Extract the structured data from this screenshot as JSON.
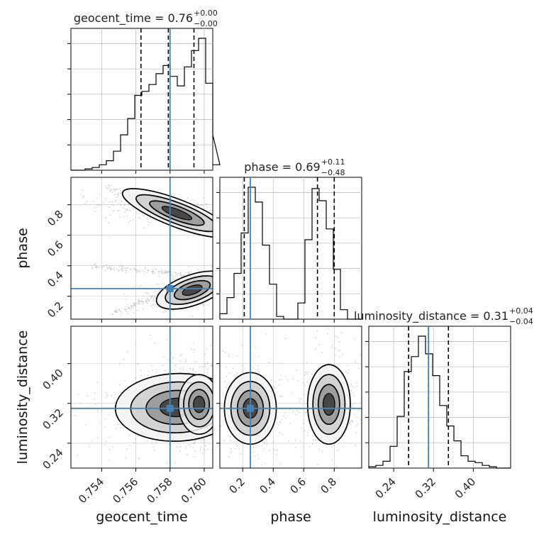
{
  "chart_data": {
    "type": "corner",
    "parameters": [
      "geocent_time",
      "phase",
      "luminosity_distance"
    ],
    "truths": {
      "geocent_time": 0.758,
      "phase": 0.25,
      "luminosity_distance": 0.31
    },
    "colors": {
      "truth": "#4682b4",
      "hist": "#000000",
      "grid": "#c0c0c0",
      "contour": "#000000"
    },
    "grid": true,
    "titles": [
      {
        "param": "geocent_time",
        "text": "geocent_time = 0.76",
        "plus": "+0.00",
        "minus": "−0.00"
      },
      {
        "param": "phase",
        "text": "phase = 0.69",
        "plus": "+0.11",
        "minus": "−0.48"
      },
      {
        "param": "luminosity_distance",
        "text": "luminosity_distance = 0.31",
        "plus": "+0.04",
        "minus": "−0.04"
      }
    ],
    "ranges": {
      "geocent_time": [
        0.7522,
        0.7605
      ],
      "phase": [
        0.05,
        0.98
      ],
      "luminosity_distance": [
        0.19,
        0.475
      ]
    },
    "ticks": {
      "geocent_time": [
        "0.754",
        "0.756",
        "0.758",
        "0.760"
      ],
      "phase": [
        "0.2",
        "0.4",
        "0.6",
        "0.8"
      ],
      "luminosity_distance": [
        "0.24",
        "0.32",
        "0.40"
      ]
    },
    "quantiles": {
      "geocent_time": [
        0.7563,
        0.7579,
        0.7594
      ],
      "phase": [
        0.21,
        0.69,
        0.8
      ],
      "luminosity_distance": [
        0.27,
        0.31,
        0.35
      ]
    },
    "histograms": {
      "geocent_time": {
        "edges_start": 0.7522,
        "bin_width": 0.000415,
        "counts": [
          0,
          0,
          0.01,
          0.02,
          0.04,
          0.07,
          0.14,
          0.26,
          0.38,
          0.55,
          0.58,
          0.63,
          0.71,
          0.77,
          0.69,
          0.62,
          0.76,
          0.88,
          0.97,
          0.64,
          0.26,
          0.04
        ]
      },
      "phase": {
        "edges_start": 0.05,
        "bin_width": 0.0465,
        "counts": [
          0.04,
          0.16,
          0.34,
          0.64,
          0.98,
          0.87,
          0.55,
          0.26,
          0.02,
          0,
          0,
          0.12,
          0.59,
          0.97,
          0.88,
          0.67,
          0.37,
          0.07,
          0,
          0
        ]
      },
      "luminosity_distance": {
        "edges_start": 0.19,
        "bin_width": 0.01425,
        "counts": [
          0.01,
          0.02,
          0.05,
          0.16,
          0.38,
          0.71,
          0.82,
          0.97,
          0.84,
          0.68,
          0.46,
          0.31,
          0.2,
          0.09,
          0.05,
          0.04,
          0.02,
          0.01,
          0,
          0
        ]
      }
    },
    "pairs": [
      {
        "x": "geocent_time",
        "y": "phase",
        "blobs": [
          {
            "cx": 0.7584,
            "cy": 0.745,
            "sx": 0.0017,
            "sy": 0.045,
            "rho": -0.6,
            "w": 0.55
          },
          {
            "cx": 0.7593,
            "cy": 0.24,
            "sx": 0.0011,
            "sy": 0.05,
            "rho": 0.55,
            "w": 0.45
          }
        ],
        "scatter_tails": [
          {
            "from": [
              0.7543,
              0.915
            ],
            "to": [
              0.7603,
              0.64
            ]
          },
          {
            "from": [
              0.7535,
              0.4
            ],
            "to": [
              0.7603,
              0.33
            ]
          },
          {
            "from": [
              0.7545,
              0.08
            ],
            "to": [
              0.7602,
              0.33
            ]
          }
        ]
      },
      {
        "x": "geocent_time",
        "y": "luminosity_distance",
        "blobs": [
          {
            "cx": 0.7584,
            "cy": 0.312,
            "sx": 0.0018,
            "sy": 0.034,
            "rho": 0.05,
            "w": 0.6
          },
          {
            "cx": 0.7597,
            "cy": 0.318,
            "sx": 0.0006,
            "sy": 0.03,
            "rho": 0.0,
            "w": 0.4
          }
        ],
        "scatter_tails": []
      },
      {
        "x": "phase",
        "y": "luminosity_distance",
        "blobs": [
          {
            "cx": 0.25,
            "cy": 0.31,
            "sx": 0.085,
            "sy": 0.036,
            "rho": 0.0,
            "w": 0.5
          },
          {
            "cx": 0.765,
            "cy": 0.318,
            "sx": 0.07,
            "sy": 0.04,
            "rho": 0.0,
            "w": 0.5
          }
        ],
        "scatter_tails": []
      }
    ]
  }
}
